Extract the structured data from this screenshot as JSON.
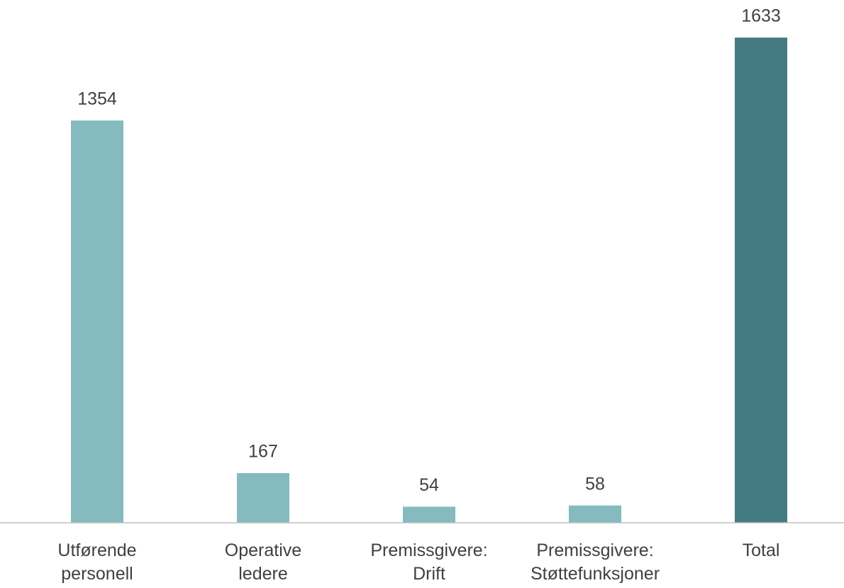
{
  "chart_data": {
    "type": "bar",
    "categories": [
      [
        "Utførende",
        "personell"
      ],
      [
        "Operative",
        "ledere"
      ],
      [
        "Premissgivere:",
        "Drift"
      ],
      [
        "Premissgivere:",
        "Støttefunksjoner"
      ],
      [
        "Total"
      ]
    ],
    "values": [
      1354,
      167,
      54,
      58,
      1633
    ],
    "colors": [
      "#85babf",
      "#85babf",
      "#85babf",
      "#85babf",
      "#447b82"
    ]
  }
}
